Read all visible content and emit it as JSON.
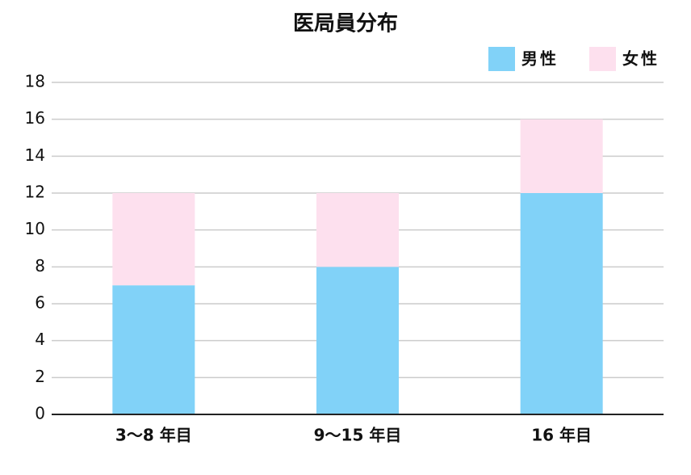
{
  "chart_data": {
    "type": "stacked_bar",
    "title": "医局員分布",
    "categories": [
      "3〜8 年目",
      "9〜15 年目",
      "16 年目"
    ],
    "series": [
      {
        "name": "男性",
        "color": "#81d2f8",
        "values": [
          7,
          8,
          12
        ]
      },
      {
        "name": "女性",
        "color": "#fde0ee",
        "values": [
          5,
          4,
          4
        ]
      }
    ],
    "ylim": [
      0,
      18
    ],
    "yticks": [
      0,
      2,
      4,
      6,
      8,
      10,
      12,
      14,
      16,
      18
    ],
    "grid": true,
    "legend": "top-right"
  }
}
